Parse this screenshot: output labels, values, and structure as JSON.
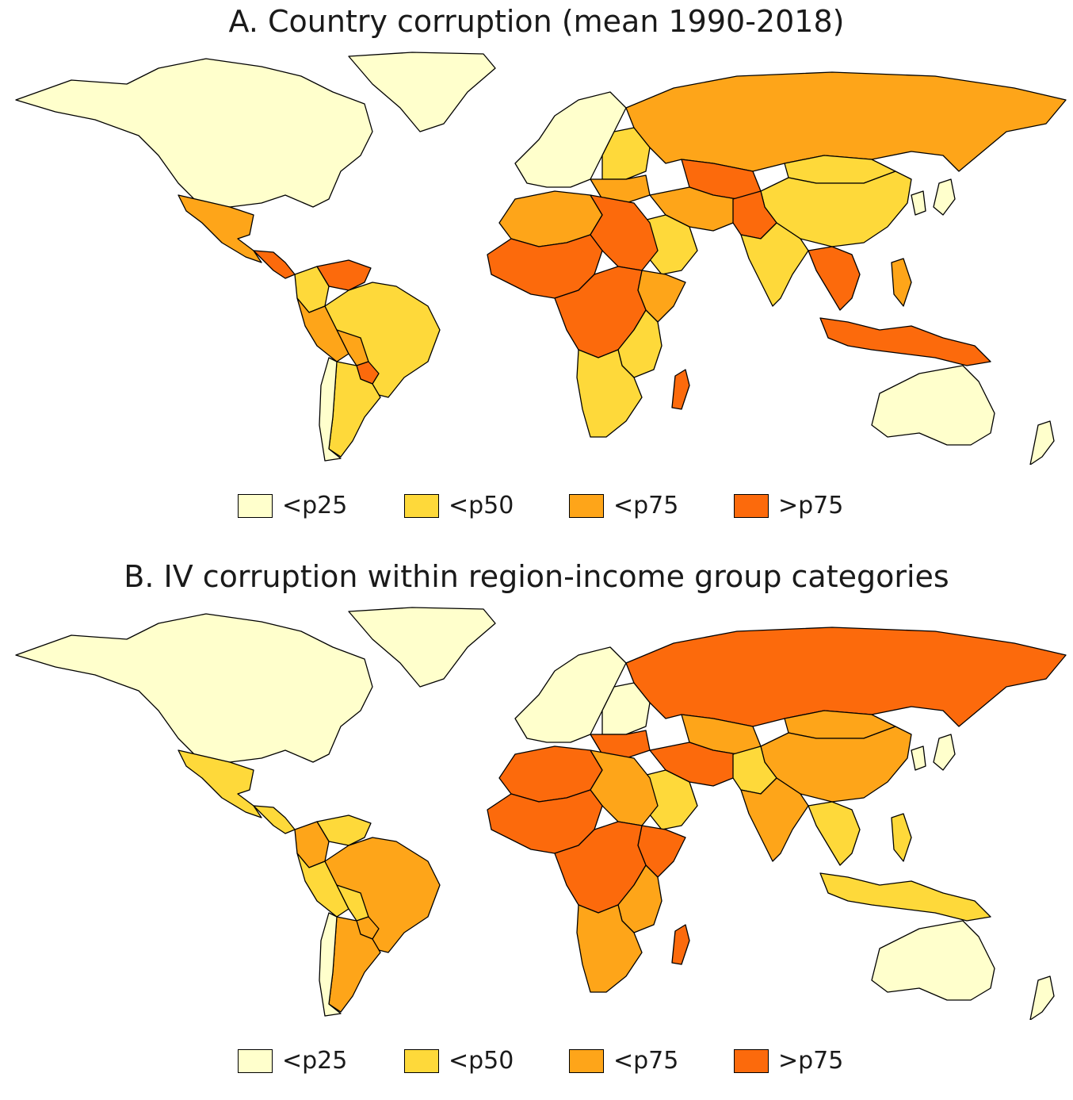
{
  "colors": {
    "c1": "#ffffcc",
    "c2": "#fed93a",
    "c3": "#fea519",
    "c4": "#fc6a0c"
  },
  "panels": [
    {
      "title": "A. Country corruption (mean 1990-2018)",
      "regions": {
        "north_america": "c1",
        "greenland": "c1",
        "mexico_central": "c3",
        "central_america_south": "c4",
        "venezuela": "c4",
        "colombia": "c2",
        "peru": "c3",
        "brazil": "c2",
        "bolivia": "c3",
        "paraguay": "c4",
        "argentina": "c2",
        "chile": "c1",
        "europe_west": "c1",
        "europe_east": "c2",
        "balkans": "c3",
        "russia": "c3",
        "central_asia": "c4",
        "china": "c2",
        "mongolia": "c2",
        "japan": "c1",
        "korea": "c1",
        "india": "c2",
        "iran_region": "c3",
        "pakistan_region": "c4",
        "arabia": "c2",
        "indochina": "c4",
        "indonesia": "c4",
        "philippines": "c3",
        "australia": "c1",
        "new_zealand": "c1",
        "north_africa_west": "c3",
        "north_africa_east": "c4",
        "west_africa": "c4",
        "horn_africa": "c3",
        "central_africa": "c4",
        "east_africa": "c2",
        "southern_africa": "c2",
        "madagascar": "c4"
      }
    },
    {
      "title": "B. IV corruption within region-income group categories",
      "regions": {
        "north_america": "c1",
        "greenland": "c1",
        "mexico_central": "c2",
        "central_america_south": "c2",
        "venezuela": "c2",
        "colombia": "c3",
        "peru": "c2",
        "brazil": "c3",
        "bolivia": "c2",
        "paraguay": "c3",
        "argentina": "c3",
        "chile": "c1",
        "europe_west": "c1",
        "europe_east": "c1",
        "balkans": "c4",
        "russia": "c4",
        "central_asia": "c3",
        "china": "c3",
        "mongolia": "c3",
        "japan": "c1",
        "korea": "c1",
        "india": "c3",
        "iran_region": "c4",
        "pakistan_region": "c2",
        "arabia": "c2",
        "indochina": "c2",
        "indonesia": "c2",
        "philippines": "c2",
        "australia": "c1",
        "new_zealand": "c1",
        "north_africa_west": "c4",
        "north_africa_east": "c3",
        "west_africa": "c4",
        "horn_africa": "c4",
        "central_africa": "c4",
        "east_africa": "c3",
        "southern_africa": "c3",
        "madagascar": "c4"
      }
    }
  ],
  "legend": [
    {
      "label": "<p25",
      "key": "c1"
    },
    {
      "label": "<p50",
      "key": "c2"
    },
    {
      "label": "<p75",
      "key": "c3"
    },
    {
      "label": ">p75",
      "key": "c4"
    }
  ]
}
